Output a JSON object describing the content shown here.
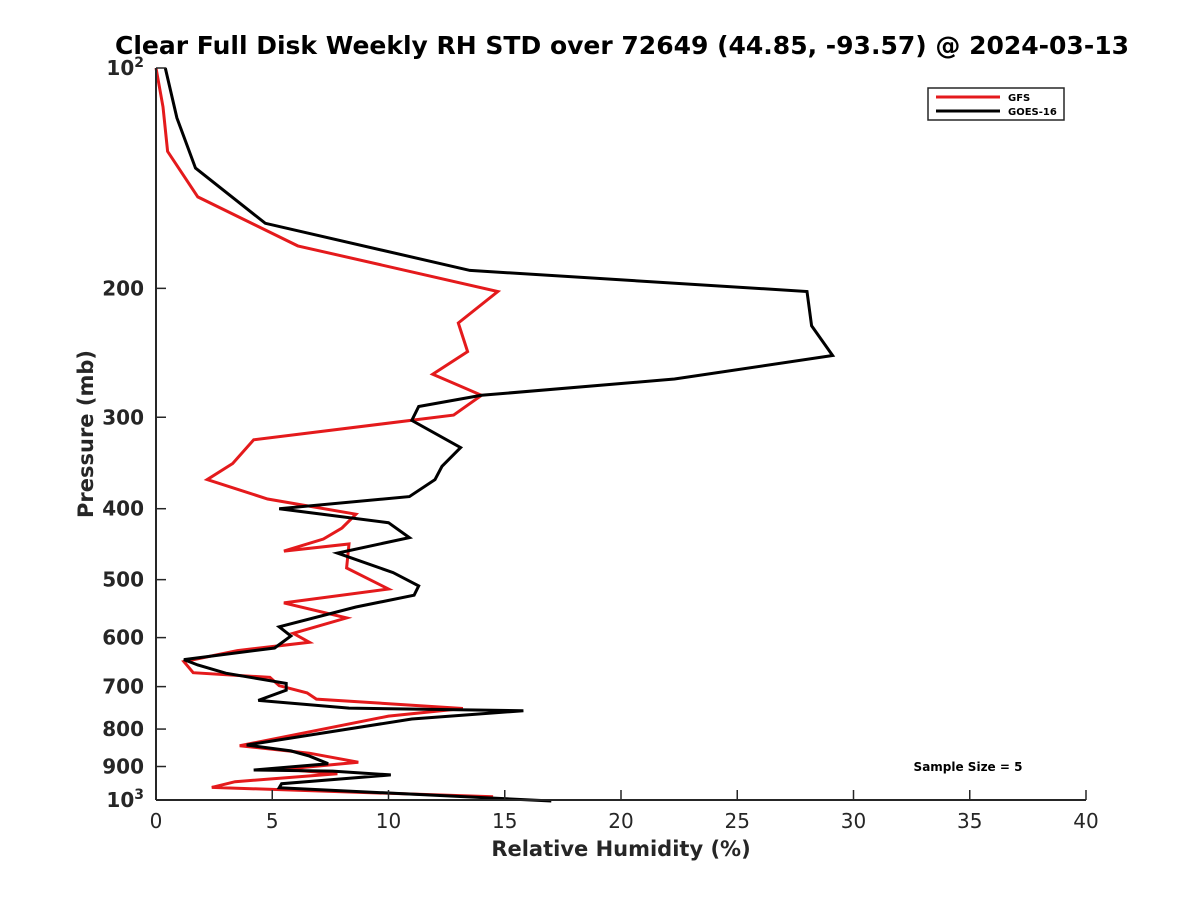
{
  "chart_data": {
    "type": "line",
    "title": "Clear Full Disk Weekly RH STD over 72649 (44.85, -93.57) @ 2024-03-13",
    "xlabel": "Relative Humidity (%)",
    "ylabel": "Pressure (mb)",
    "xlim": [
      0,
      40
    ],
    "ylim": [
      100,
      1000
    ],
    "y_scale": "log",
    "y_reversed": true,
    "x_ticks": [
      0,
      5,
      10,
      15,
      20,
      25,
      30,
      35,
      40
    ],
    "x_tick_labels": [
      "0",
      "5",
      "10",
      "15",
      "20",
      "25",
      "30",
      "35",
      "40"
    ],
    "y_ticks": [
      100,
      200,
      300,
      400,
      500,
      600,
      700,
      800,
      900,
      1000
    ],
    "y_tick_labels": [
      {
        "base": "10",
        "exp": "2"
      },
      {
        "base": "200",
        "exp": ""
      },
      {
        "base": "300",
        "exp": ""
      },
      {
        "base": "400",
        "exp": ""
      },
      {
        "base": "500",
        "exp": ""
      },
      {
        "base": "600",
        "exp": ""
      },
      {
        "base": "700",
        "exp": ""
      },
      {
        "base": "800",
        "exp": ""
      },
      {
        "base": "900",
        "exp": ""
      },
      {
        "base": "10",
        "exp": "3"
      }
    ],
    "grid": false,
    "legend_position": "top-right",
    "annotation": "Sample Size = 5",
    "series": [
      {
        "name": "GFS",
        "color": "#e41a1c",
        "x": [
          0.0,
          0.3,
          0.5,
          1.8,
          6.1,
          14.7,
          13.0,
          13.4,
          11.9,
          14.0,
          12.8,
          4.2,
          3.3,
          2.2,
          4.8,
          8.6,
          8.0,
          7.2,
          5.5,
          8.3,
          8.2,
          10.0,
          5.5,
          8.2,
          5.9,
          6.6,
          3.5,
          1.2,
          1.6,
          4.9,
          5.3,
          6.5,
          6.9,
          13.2,
          10.0,
          3.6,
          6.6,
          8.7,
          5.5,
          7.8,
          3.4,
          2.4,
          14.5
        ],
        "y": [
          100,
          113,
          130,
          150,
          175,
          202,
          223,
          244,
          262,
          280,
          298,
          322,
          347,
          365,
          388,
          407,
          425,
          440,
          457,
          447,
          482,
          515,
          538,
          564,
          592,
          609,
          625,
          647,
          670,
          680,
          698,
          714,
          728,
          750,
          768,
          843,
          863,
          888,
          908,
          921,
          944,
          961,
          990
        ]
      },
      {
        "name": "GOES-16",
        "color": "#000000",
        "x": [
          0.4,
          0.9,
          1.7,
          4.7,
          13.5,
          28.0,
          28.2,
          29.1,
          22.3,
          14.0,
          11.3,
          11.0,
          13.1,
          12.3,
          12.0,
          10.9,
          5.3,
          10.0,
          10.9,
          7.8,
          10.2,
          11.3,
          11.1,
          8.6,
          5.3,
          5.8,
          5.1,
          1.2,
          1.8,
          3.0,
          5.6,
          5.6,
          4.4,
          8.3,
          15.8,
          11.0,
          3.9,
          5.8,
          6.6,
          7.4,
          4.2,
          7.6,
          10.1,
          5.4,
          5.3,
          17.0
        ],
        "y": [
          100,
          117,
          137,
          163,
          189,
          202,
          225,
          247,
          266,
          280,
          290,
          303,
          330,
          350,
          365,
          385,
          400,
          418,
          438,
          460,
          489,
          510,
          525,
          545,
          580,
          597,
          620,
          643,
          654,
          671,
          693,
          708,
          731,
          749,
          755,
          775,
          841,
          857,
          871,
          892,
          910,
          913,
          924,
          950,
          962,
          1003
        ]
      }
    ]
  }
}
